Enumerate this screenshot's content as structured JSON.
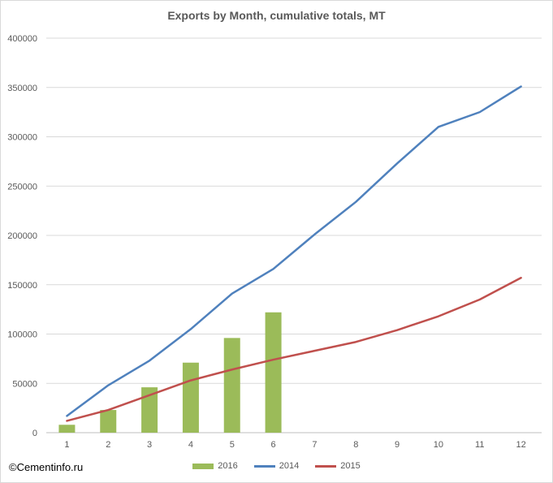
{
  "chart_data": {
    "type": "bar+line",
    "title": "Exports by Month, cumulative totals, MT",
    "xlabel": "",
    "ylabel": "",
    "categories": [
      "1",
      "2",
      "3",
      "4",
      "5",
      "6",
      "7",
      "8",
      "9",
      "10",
      "11",
      "12"
    ],
    "ylim": [
      0,
      400000
    ],
    "yticks": [
      0,
      50000,
      100000,
      150000,
      200000,
      250000,
      300000,
      350000,
      400000
    ],
    "grid": true,
    "legend_position": "bottom",
    "series": [
      {
        "name": "2016",
        "kind": "bar",
        "color": "#9bbb59",
        "values": [
          8000,
          23000,
          46000,
          71000,
          96000,
          122000,
          null,
          null,
          null,
          null,
          null,
          null
        ]
      },
      {
        "name": "2014",
        "kind": "line",
        "color": "#4f81bd",
        "values": [
          17000,
          48000,
          73000,
          105000,
          141000,
          166000,
          201000,
          234000,
          273000,
          310000,
          325000,
          351000
        ]
      },
      {
        "name": "2015",
        "kind": "line",
        "color": "#c0504d",
        "values": [
          12000,
          23000,
          38000,
          53000,
          64000,
          74000,
          83000,
          92000,
          104000,
          118000,
          135000,
          157000
        ]
      }
    ]
  },
  "credit": "©Cementinfo.ru"
}
